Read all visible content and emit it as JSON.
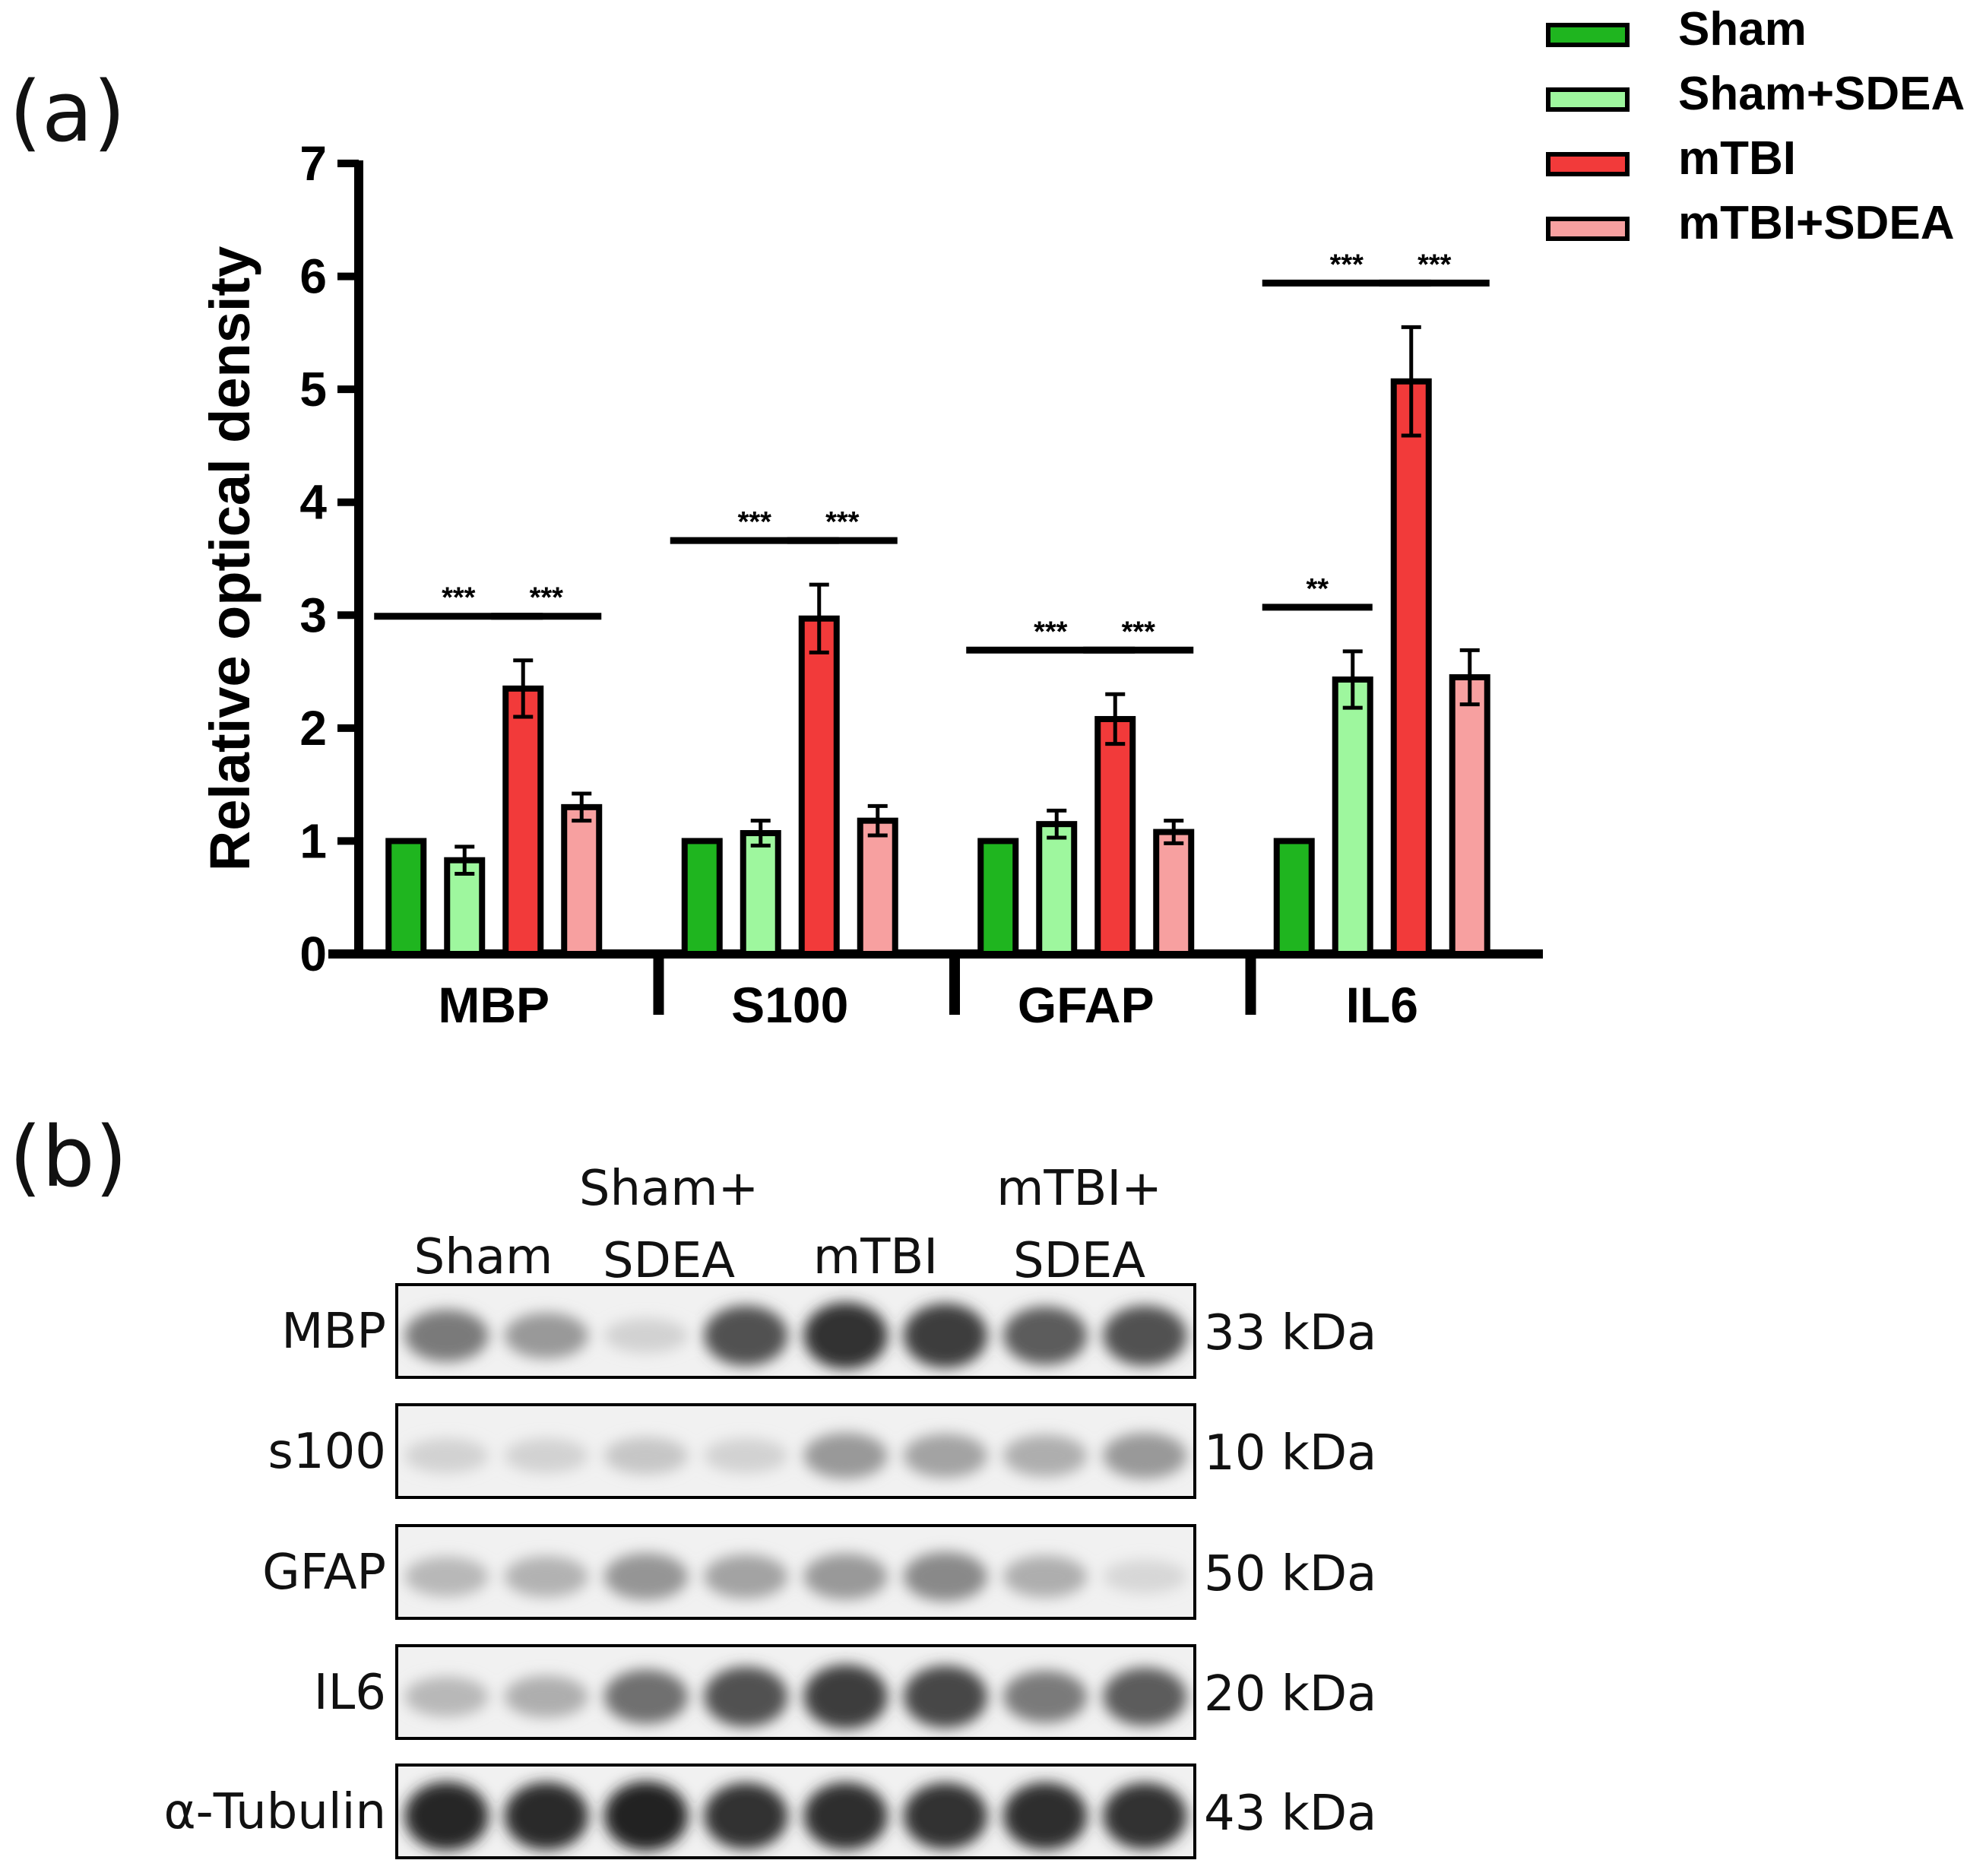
{
  "panels": {
    "a": "(a)",
    "b": "(b)"
  },
  "chart_data": {
    "type": "bar",
    "ylabel": "Relative optical density",
    "ylim": [
      0,
      7
    ],
    "yticks": [
      0,
      1,
      2,
      3,
      4,
      5,
      6,
      7
    ],
    "categories": [
      "MBP",
      "S100",
      "GFAP",
      "IL6"
    ],
    "series": [
      {
        "name": "Sham",
        "color": "#1fb51f",
        "values": [
          1.0,
          1.0,
          1.0,
          1.0
        ],
        "errors": [
          0,
          0,
          0,
          0
        ]
      },
      {
        "name": "Sham+SDEA",
        "color": "#9ef79e",
        "values": [
          0.83,
          1.07,
          1.15,
          2.43
        ],
        "errors": [
          0.12,
          0.11,
          0.12,
          0.25
        ]
      },
      {
        "name": "mTBI",
        "color": "#f23a3a",
        "values": [
          2.35,
          2.97,
          2.08,
          5.07
        ],
        "errors": [
          0.25,
          0.3,
          0.22,
          0.48
        ]
      },
      {
        "name": "mTBI+SDEA",
        "color": "#f7a0a0",
        "values": [
          1.3,
          1.18,
          1.08,
          2.45
        ],
        "errors": [
          0.12,
          0.13,
          0.1,
          0.24
        ]
      }
    ],
    "significance": [
      {
        "category": "MBP",
        "from": 0,
        "to": 2,
        "label": "***"
      },
      {
        "category": "MBP",
        "from": 2,
        "to": 3,
        "label": "***"
      },
      {
        "category": "S100",
        "from": 0,
        "to": 2,
        "label": "***"
      },
      {
        "category": "S100",
        "from": 2,
        "to": 3,
        "label": "***"
      },
      {
        "category": "GFAP",
        "from": 0,
        "to": 2,
        "label": "***"
      },
      {
        "category": "GFAP",
        "from": 2,
        "to": 3,
        "label": "***"
      },
      {
        "category": "IL6",
        "from": 0,
        "to": 1,
        "label": "**"
      },
      {
        "category": "IL6",
        "from": 0,
        "to": 2,
        "label": "***"
      },
      {
        "category": "IL6",
        "from": 2,
        "to": 3,
        "label": "***"
      }
    ],
    "legend": {
      "placement": "top-right"
    }
  },
  "blot": {
    "groups": [
      "Sham",
      "Sham+\nSDEA",
      "mTBI",
      "mTBI+\nSDEA"
    ],
    "rows": [
      {
        "protein": "MBP",
        "size": "33 kDa",
        "intensity": [
          0.55,
          0.4,
          0.12,
          0.75,
          0.9,
          0.85,
          0.7,
          0.75
        ]
      },
      {
        "protein": "s100",
        "size": "10 kDa",
        "intensity": [
          0.12,
          0.12,
          0.18,
          0.12,
          0.4,
          0.35,
          0.3,
          0.4
        ]
      },
      {
        "protein": "GFAP",
        "size": "50 kDa",
        "intensity": [
          0.25,
          0.28,
          0.42,
          0.35,
          0.4,
          0.48,
          0.3,
          0.1
        ]
      },
      {
        "protein": "IL6",
        "size": "20 kDa",
        "intensity": [
          0.25,
          0.3,
          0.6,
          0.75,
          0.85,
          0.8,
          0.55,
          0.7
        ]
      },
      {
        "protein": "α-Tubulin",
        "size": "43 kDa",
        "intensity": [
          0.95,
          0.93,
          0.97,
          0.9,
          0.92,
          0.9,
          0.92,
          0.9
        ]
      }
    ]
  }
}
